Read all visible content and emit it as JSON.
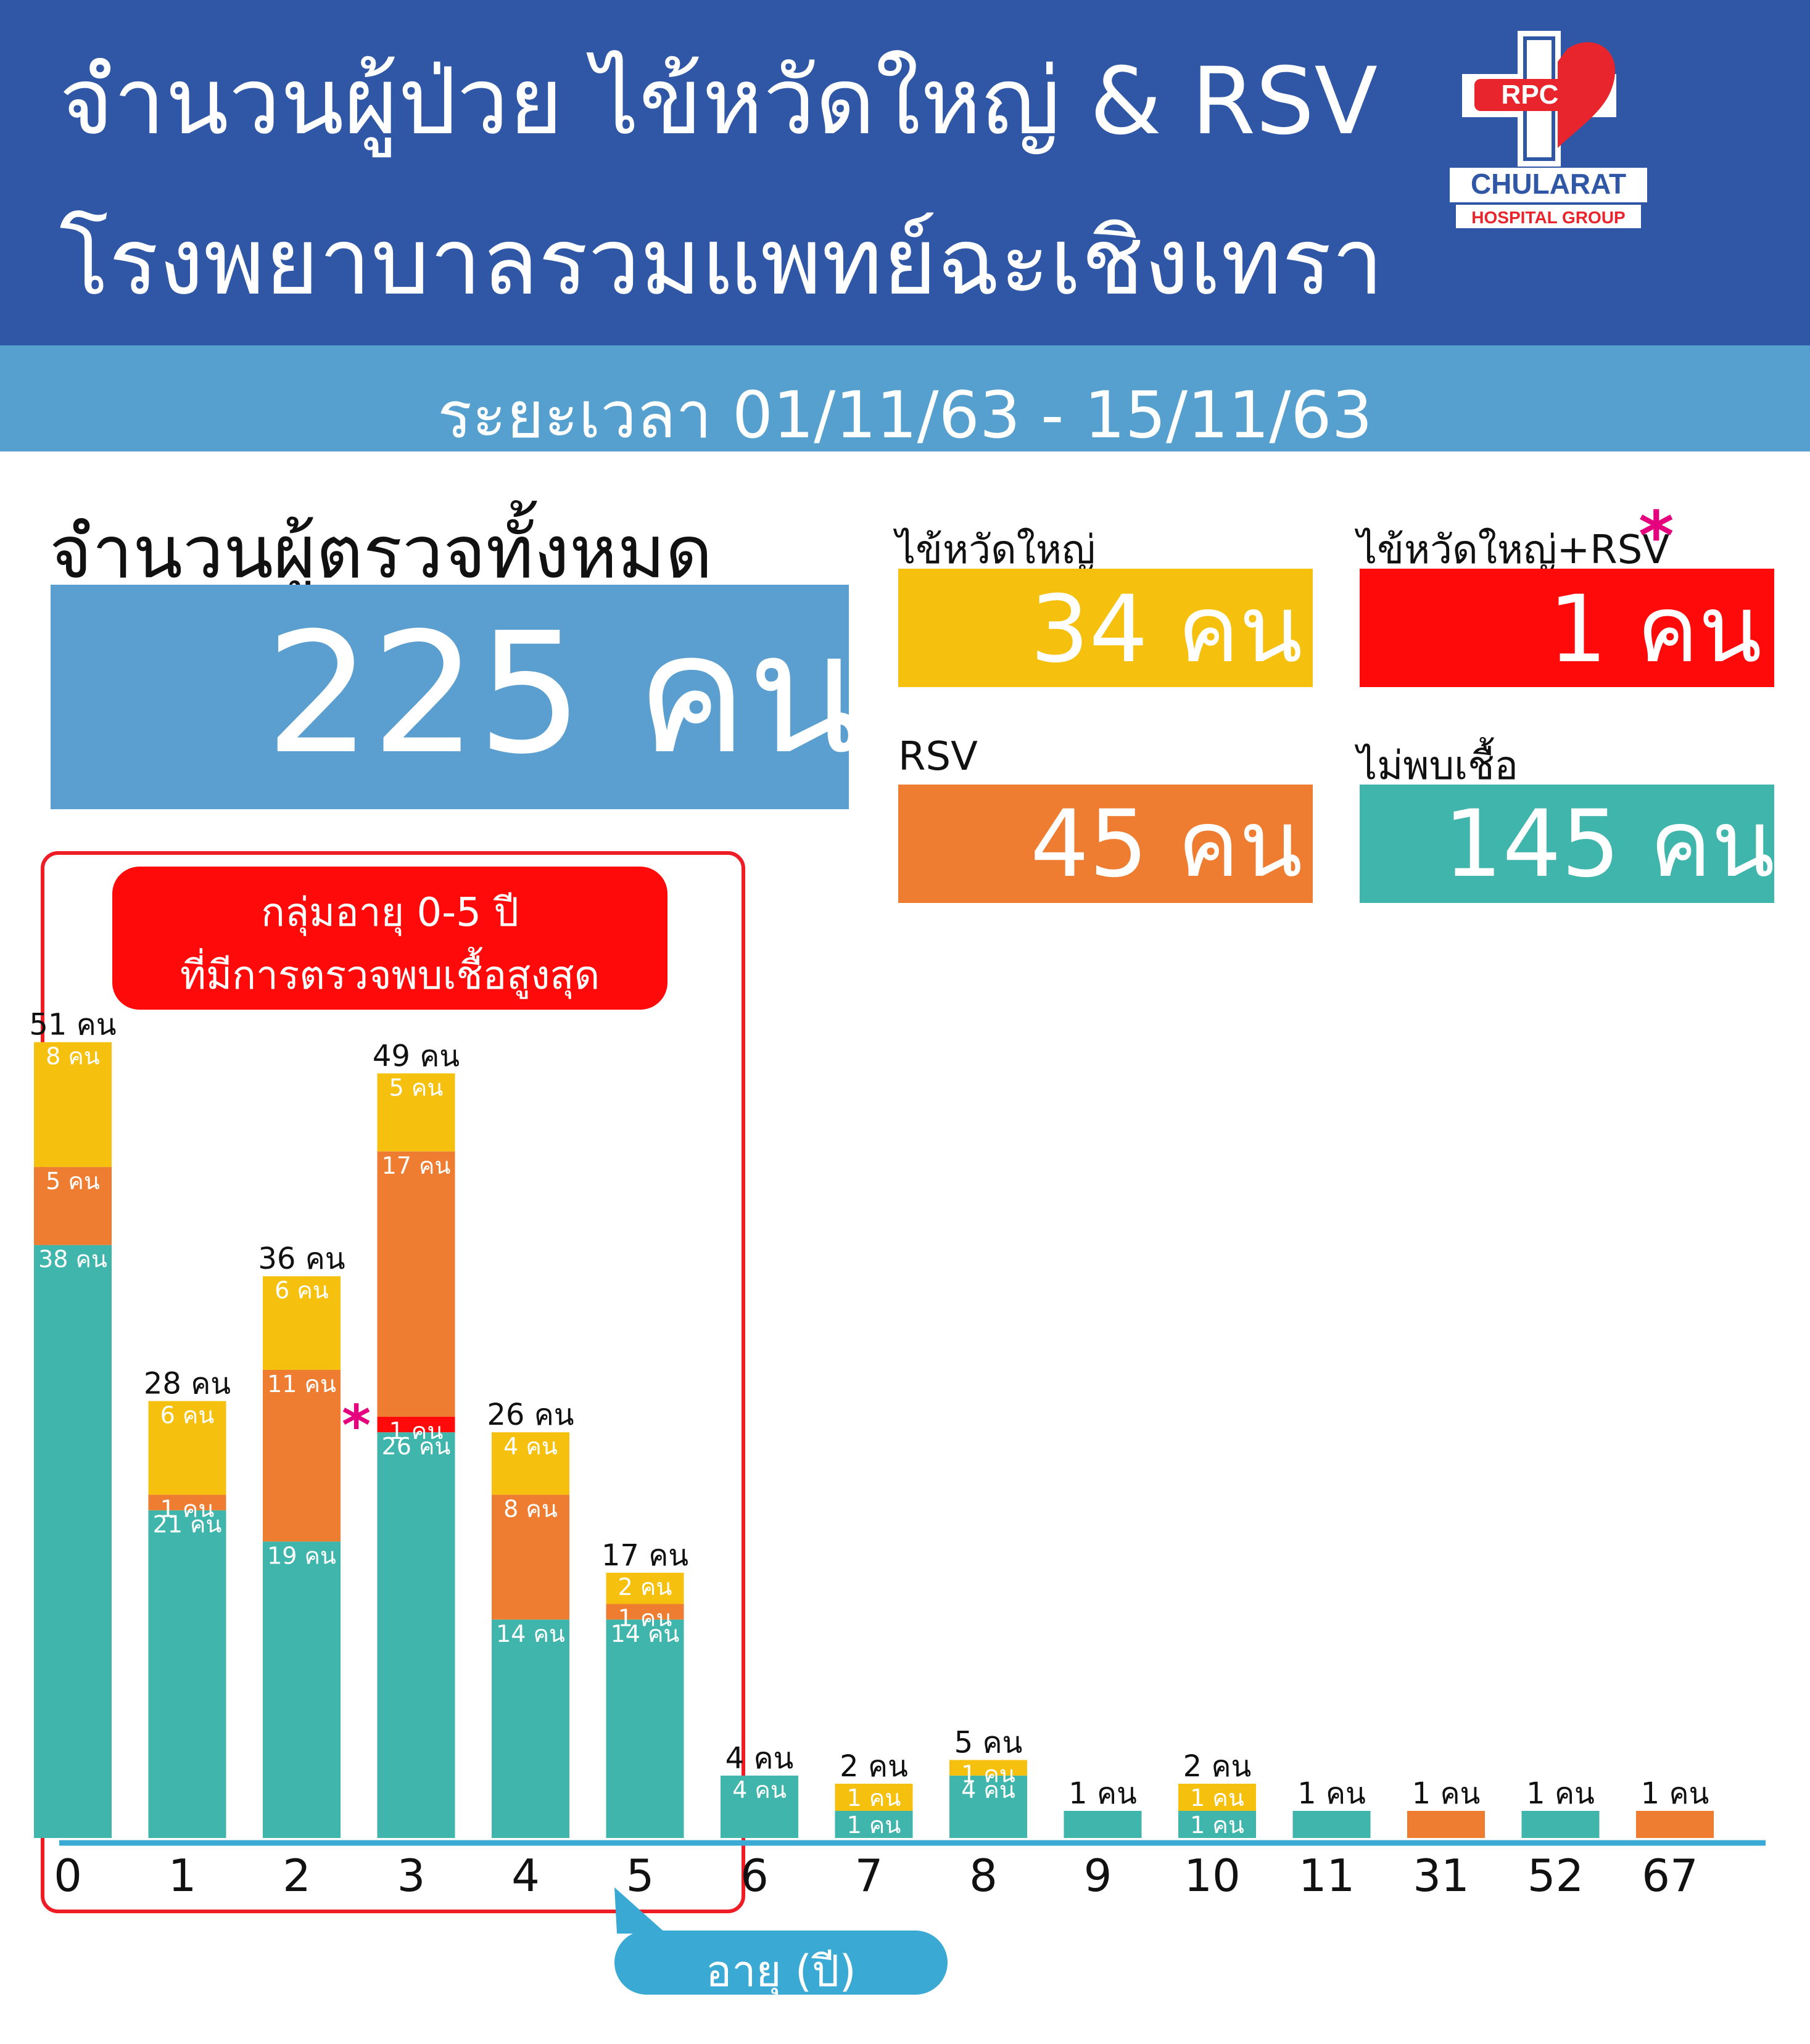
{
  "header": {
    "title_line1": "จำนวนผู้ป่วย ไข้หวัดใหญ่ & RSV",
    "title_line2": "โรงพยาบาลรวมแพทย์ฉะเชิงเทรา",
    "date_range": "ระยะเวลา 01/11/63 - 15/11/63"
  },
  "logo": {
    "badge": "RPC",
    "name": "CHULARAT",
    "sub": "HOSPITAL GROUP"
  },
  "total": {
    "label": "จำนวนผู้ตรวจทั้งหมด",
    "value": "225 คน"
  },
  "categories": {
    "flu": {
      "label": "ไข้หวัดใหญ่",
      "value": "34 คน",
      "color": "#f6c10e"
    },
    "flu_rsv": {
      "label": "ไข้หวัดใหญ่+RSV",
      "value": "1 คน",
      "color": "#ff0a0a",
      "star": "*"
    },
    "rsv": {
      "label": "RSV",
      "value": "45 คน",
      "color": "#ee7d31"
    },
    "none": {
      "label": "ไม่พบเชื้อ",
      "value": "145 คน",
      "color": "#3fb5ac"
    }
  },
  "group": {
    "line1": "กลุ่มอายุ 0-5 ปี",
    "line2": "ที่มีการตรวจพบเชื้อสูงสุด"
  },
  "chart_data": {
    "type": "bar",
    "stacked": true,
    "xlabel": "อายุ (ปี)",
    "unit": "คน",
    "categories": [
      "0",
      "1",
      "2",
      "3",
      "4",
      "5",
      "6",
      "7",
      "8",
      "9",
      "10",
      "11",
      "31",
      "52",
      "67"
    ],
    "series": [
      {
        "name": "ไม่พบเชื้อ",
        "color": "#3fb5ac",
        "values": [
          38,
          21,
          19,
          26,
          14,
          14,
          4,
          1,
          4,
          1,
          1,
          1,
          0,
          1,
          0
        ]
      },
      {
        "name": "ไข้หวัดใหญ่+RSV",
        "color": "#ff0a0a",
        "values": [
          0,
          0,
          0,
          1,
          0,
          0,
          0,
          0,
          0,
          0,
          0,
          0,
          0,
          0,
          0
        ]
      },
      {
        "name": "RSV",
        "color": "#ee7d31",
        "values": [
          5,
          1,
          11,
          17,
          8,
          1,
          0,
          0,
          0,
          0,
          0,
          0,
          1,
          0,
          1
        ]
      },
      {
        "name": "ไข้หวัดใหญ่",
        "color": "#f6c10e",
        "values": [
          8,
          6,
          6,
          5,
          4,
          2,
          0,
          1,
          1,
          0,
          1,
          0,
          0,
          0,
          0
        ]
      }
    ],
    "totals": [
      51,
      28,
      36,
      49,
      26,
      17,
      4,
      2,
      5,
      1,
      2,
      1,
      1,
      1,
      1
    ],
    "axis_color": "#3aa9d3"
  }
}
